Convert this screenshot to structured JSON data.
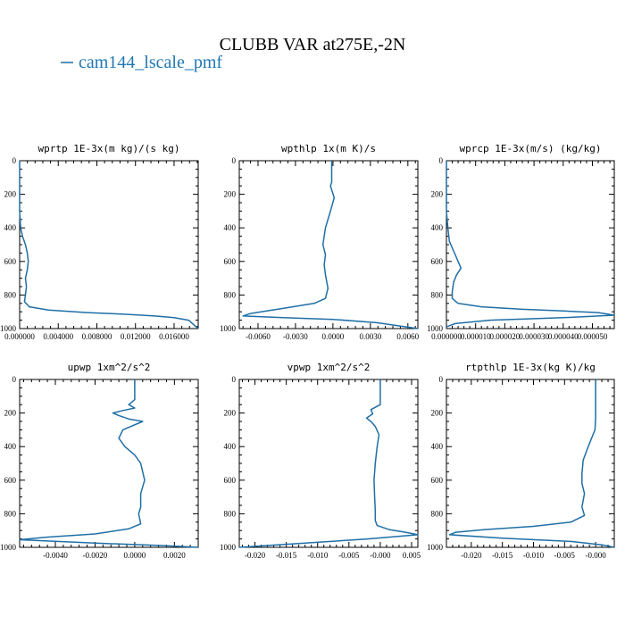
{
  "figure": {
    "title": "CLUBB VAR at275E,-2N",
    "legend": [
      {
        "name": "cam144_lscale_pmf",
        "color": "#1f6fa6"
      }
    ]
  },
  "chart_data": [
    {
      "type": "line",
      "title": "wprtp  1E-3x(m kg)/(s kg)",
      "xlim": [
        0,
        0.0185
      ],
      "ylim": [
        1000,
        0
      ],
      "xticks": [
        0,
        0.004,
        0.008,
        0.012,
        0.016
      ],
      "xtick_labels": [
        "0.000000",
        "0.004000",
        "0.008000",
        "0.012000",
        "0.016000"
      ],
      "yticks": [
        0,
        200,
        400,
        600,
        800,
        1000
      ],
      "ytick_labels": [
        "0",
        "200",
        "400",
        "600",
        "800",
        "1000"
      ],
      "series": [
        {
          "color": "#1f6fa6",
          "x": [
            0,
            0,
            0.0001,
            0.0003,
            0.0006,
            0.0008,
            0.0009,
            0.0008,
            0.0006,
            0.0007,
            0.0006,
            0.0005,
            0.001,
            0.003,
            0.007,
            0.011,
            0.014,
            0.016,
            0.0175,
            0.018,
            0.0185
          ],
          "y": [
            0,
            300,
            400,
            450,
            500,
            550,
            600,
            650,
            700,
            750,
            800,
            840,
            870,
            890,
            905,
            915,
            925,
            935,
            950,
            975,
            1000
          ]
        }
      ]
    },
    {
      "type": "line",
      "title": "wpthlp  1x(m K)/s",
      "xlim": [
        -0.0075,
        0.0068
      ],
      "ylim": [
        1000,
        0
      ],
      "xticks": [
        -0.006,
        -0.003,
        0,
        0.003,
        0.006
      ],
      "xtick_labels": [
        "-0.0060",
        "-0.0030",
        "0.0000",
        "0.0030",
        "0.0060"
      ],
      "yticks": [
        0,
        200,
        400,
        600,
        800,
        1000
      ],
      "ytick_labels": [
        "0",
        "200",
        "400",
        "600",
        "800",
        "1000"
      ],
      "series": [
        {
          "color": "#1f6fa6",
          "x": [
            -0.0001,
            -0.0001,
            -0.0002,
            0.0001,
            -0.0002,
            -0.0006,
            -0.0008,
            -0.0006,
            -0.0007,
            -0.0006,
            -0.0004,
            -0.0006,
            -0.0015,
            -0.004,
            -0.0066,
            -0.0072,
            -0.004,
            0.0,
            0.0035,
            0.0068
          ],
          "y": [
            0,
            130,
            150,
            220,
            300,
            400,
            500,
            560,
            620,
            680,
            760,
            820,
            850,
            880,
            910,
            925,
            935,
            945,
            965,
            1000
          ]
        }
      ]
    },
    {
      "type": "line",
      "title": "wprcp  1E-3x(m/s) (kg/kg)",
      "xlim": [
        0,
        5.75e-05
      ],
      "ylim": [
        1000,
        0
      ],
      "xticks": [
        0,
        1e-05,
        2e-05,
        3e-05,
        4e-05,
        5e-05
      ],
      "xtick_labels": [
        "0.000000",
        "0.000010",
        "0.000020",
        "0.000030",
        "0.000040",
        "0.000050"
      ],
      "yticks": [
        0,
        200,
        400,
        600,
        800,
        1000
      ],
      "ytick_labels": [
        "0",
        "200",
        "400",
        "600",
        "800",
        "1000"
      ],
      "series": [
        {
          "color": "#1f6fa6",
          "x": [
            0,
            0,
            5e-07,
            1e-06,
            2.5e-06,
            4e-06,
            5e-06,
            3.5e-06,
            2.5e-06,
            2e-06,
            2e-06,
            4e-06,
            1.2e-05,
            2.6e-05,
            4e-05,
            5.2e-05,
            5.75e-05,
            4e-05,
            1.5e-05,
            3e-06,
            0
          ],
          "y": [
            0,
            300,
            400,
            480,
            540,
            600,
            640,
            680,
            720,
            780,
            820,
            850,
            870,
            885,
            895,
            905,
            920,
            935,
            950,
            970,
            990
          ]
        }
      ]
    },
    {
      "type": "line",
      "title": "upwp  1xm^2/s^2",
      "xlim": [
        -0.0058,
        0.0032
      ],
      "ylim": [
        1000,
        0
      ],
      "xticks": [
        -0.004,
        -0.002,
        0,
        0.002
      ],
      "xtick_labels": [
        "-0.0040",
        "-0.0020",
        "0.0000",
        "0.0020"
      ],
      "yticks": [
        0,
        200,
        400,
        600,
        800,
        1000
      ],
      "ytick_labels": [
        "0",
        "200",
        "400",
        "600",
        "800",
        "1000"
      ],
      "series": [
        {
          "color": "#1f6fa6",
          "x": [
            0,
            0,
            -0.0003,
            0,
            -0.0006,
            -0.0011,
            -0.0008,
            -0.0003,
            0.0004,
            -0.0006,
            -0.0008,
            -0.0005,
            0,
            0.0003,
            0.0005,
            0.0003,
            0.0003,
            0.0002,
            0.0003,
            -0.0003,
            -0.002,
            -0.0045,
            -0.0058,
            -0.002,
            0.0015,
            0.0032
          ],
          "y": [
            0,
            120,
            150,
            170,
            185,
            200,
            215,
            235,
            250,
            300,
            350,
            400,
            450,
            500,
            600,
            680,
            760,
            800,
            860,
            890,
            920,
            940,
            955,
            975,
            990,
            1000
          ]
        }
      ]
    },
    {
      "type": "line",
      "title": "vpwp  1xm^2/s^2",
      "xlim": [
        -0.0225,
        0.006
      ],
      "ylim": [
        1000,
        0
      ],
      "xticks": [
        -0.02,
        -0.015,
        -0.01,
        -0.005,
        0,
        0.005
      ],
      "xtick_labels": [
        "-0.020",
        "-0.015",
        "-0.010",
        "-0.005",
        "-0.000",
        "0.005"
      ],
      "yticks": [
        0,
        200,
        400,
        600,
        800,
        1000
      ],
      "ytick_labels": [
        "0",
        "200",
        "400",
        "600",
        "800",
        "1000"
      ],
      "series": [
        {
          "color": "#1f6fa6",
          "x": [
            0,
            0,
            -0.0015,
            -0.0012,
            -0.0022,
            -0.0015,
            -0.0008,
            -0.0002,
            -0.0005,
            -0.0008,
            -0.001,
            -0.0009,
            -0.0008,
            -0.0008,
            -0.0005,
            0.0015,
            0.004,
            0.006,
            -0.002,
            -0.012,
            -0.0225
          ],
          "y": [
            0,
            150,
            180,
            205,
            230,
            250,
            280,
            330,
            400,
            500,
            600,
            700,
            780,
            840,
            870,
            895,
            910,
            925,
            950,
            975,
            1000
          ]
        }
      ]
    },
    {
      "type": "line",
      "title": "rtpthlp  1E-3x(kg K)/kg",
      "xlim": [
        -0.024,
        0.003
      ],
      "ylim": [
        1000,
        0
      ],
      "xticks": [
        -0.02,
        -0.015,
        -0.01,
        -0.005,
        0
      ],
      "xtick_labels": [
        "-0.020",
        "-0.015",
        "-0.010",
        "-0.005",
        "-0.000"
      ],
      "yticks": [
        0,
        200,
        400,
        600,
        800,
        1000
      ],
      "ytick_labels": [
        "0",
        "200",
        "400",
        "600",
        "800",
        "1000"
      ],
      "series": [
        {
          "color": "#1f6fa6",
          "x": [
            0,
            0,
            -0.0001,
            -0.0012,
            -0.002,
            -0.0022,
            -0.0022,
            -0.0018,
            -0.0022,
            -0.0018,
            -0.004,
            -0.01,
            -0.018,
            -0.0225,
            -0.0235,
            -0.015,
            -0.004,
            0.001,
            0.003
          ],
          "y": [
            0,
            230,
            300,
            400,
            480,
            560,
            620,
            680,
            760,
            810,
            850,
            875,
            895,
            910,
            925,
            945,
            965,
            985,
            1000
          ]
        }
      ]
    }
  ]
}
